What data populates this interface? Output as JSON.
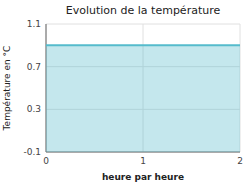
{
  "chart_data": {
    "type": "area",
    "title": "Evolution de la température",
    "x_label": "heure par heure",
    "y_label": "Température en °C",
    "x": [
      0,
      2
    ],
    "values": [
      0.9,
      0.9
    ],
    "color": "#55bbcc",
    "xlim": [
      0,
      2
    ],
    "xticks": [
      0,
      1,
      2
    ],
    "ylim": [
      -0.1,
      1.1
    ],
    "yticks": [
      -0.1,
      0.3,
      0.7,
      1.1
    ],
    "grid": true
  }
}
